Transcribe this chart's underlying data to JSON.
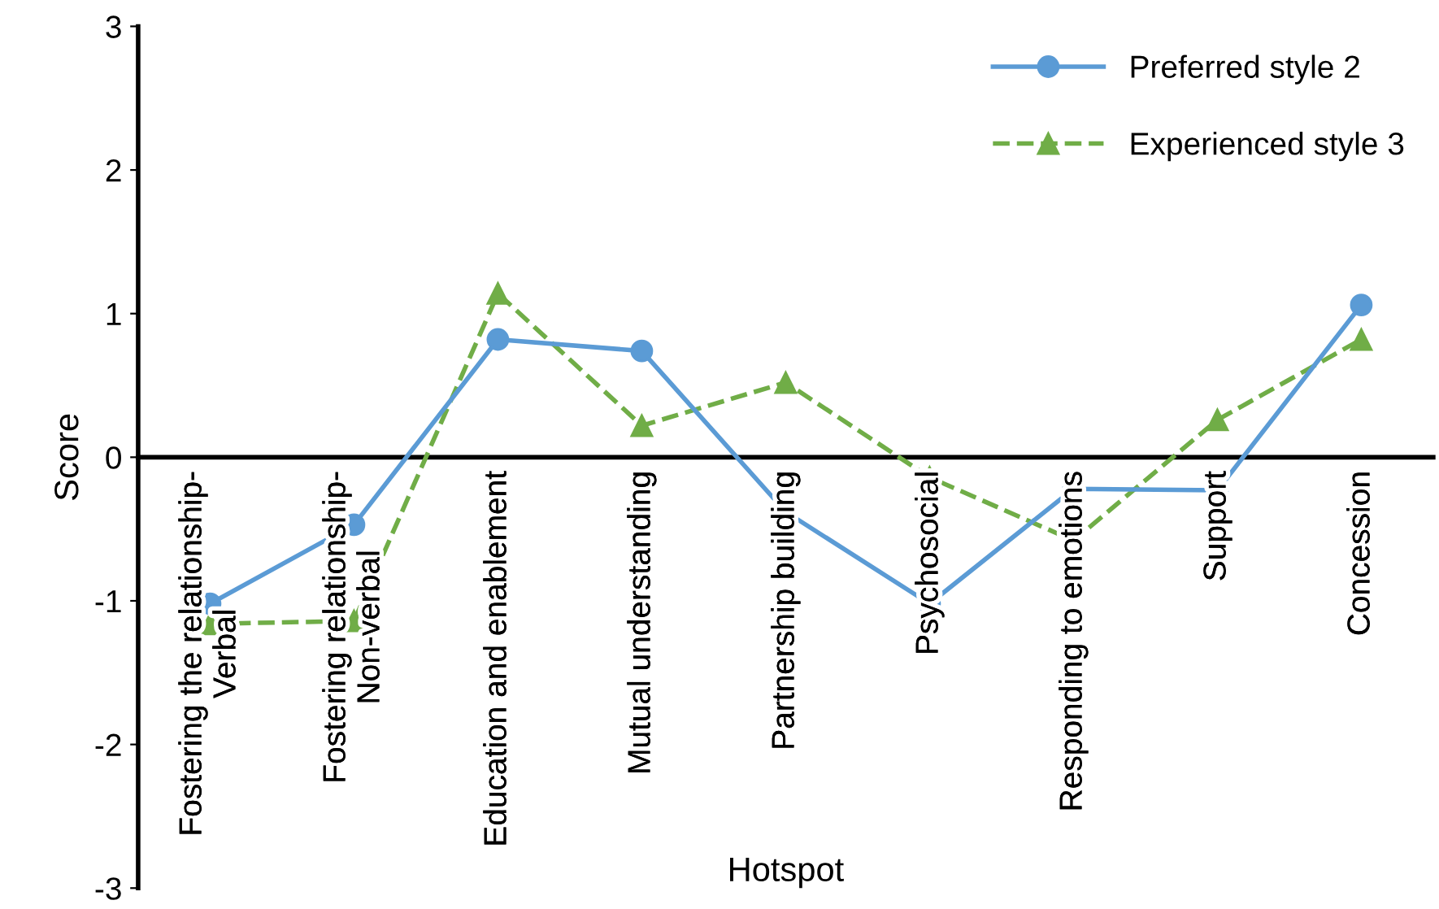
{
  "chart_data": {
    "type": "line",
    "xlabel": "Hotspot",
    "ylabel": "Score",
    "categories": [
      "Fostering the relationship-\nVerbal",
      "Fostering relationship-\nNon-verbal",
      "Education and enablement",
      "Mutual understanding",
      "Partnership building",
      "Psychosocial",
      "Responding to emotions",
      "Support",
      "Concession"
    ],
    "series": [
      {
        "name": "Preferred style 2",
        "color": "#5b9bd5",
        "marker": "circle",
        "line_style": "solid",
        "values": [
          -1.02,
          -0.47,
          0.82,
          0.74,
          -0.38,
          -1.02,
          -0.22,
          -0.23,
          1.06
        ]
      },
      {
        "name": "Experienced style 3",
        "color": "#70ad47",
        "marker": "triangle",
        "line_style": "dashed",
        "values": [
          -1.16,
          -1.14,
          1.14,
          0.22,
          0.52,
          -0.14,
          -0.58,
          0.26,
          0.82
        ]
      }
    ],
    "ylim": [
      -3,
      3
    ],
    "yticks": [
      -3,
      -2,
      -1,
      0,
      1,
      2,
      3
    ],
    "grid": false,
    "legend": "top right"
  }
}
